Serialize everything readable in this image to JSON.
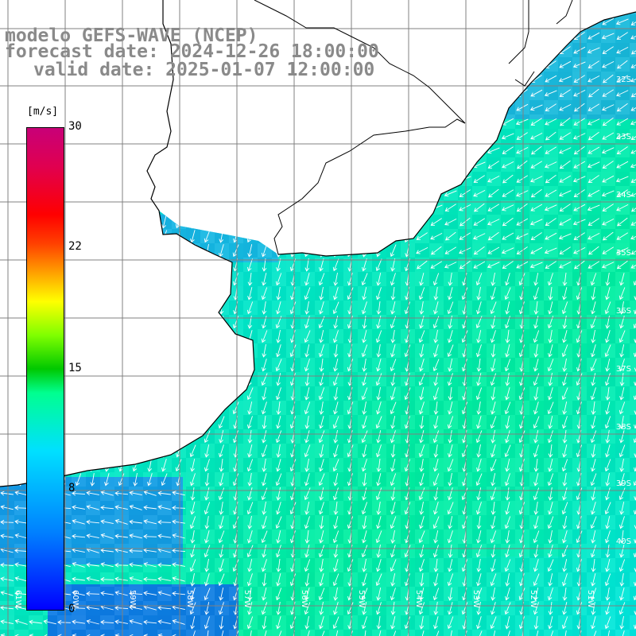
{
  "title": {
    "line1": "modelo GEFS-WAVE (NCEP)",
    "line2": "forecast date: 2024-12-26 18:00:00",
    "line3": "valid date: 2025-01-07 12:00:00"
  },
  "colorbar": {
    "unit": "[m/s]",
    "ticks": [
      "30",
      "22",
      "15",
      "8",
      "0"
    ],
    "colors": [
      "#0000ff",
      "#0080ff",
      "#00e0ff",
      "#00ff90",
      "#00c800",
      "#ffff00",
      "#ff0000",
      "#c80078"
    ]
  },
  "grid": {
    "lat_labels": [
      "32S",
      "33S",
      "34S",
      "35S",
      "36S",
      "37S",
      "38S",
      "39S",
      "40S"
    ],
    "lon_labels": [
      "61W",
      "60W",
      "59W",
      "58W",
      "57W",
      "56W",
      "55W",
      "54W",
      "53W",
      "52W",
      "51W"
    ]
  },
  "colors": {
    "land": "#ffffff",
    "coast": "#000000",
    "gridline": "#808080",
    "arrow": "#ffffff"
  }
}
